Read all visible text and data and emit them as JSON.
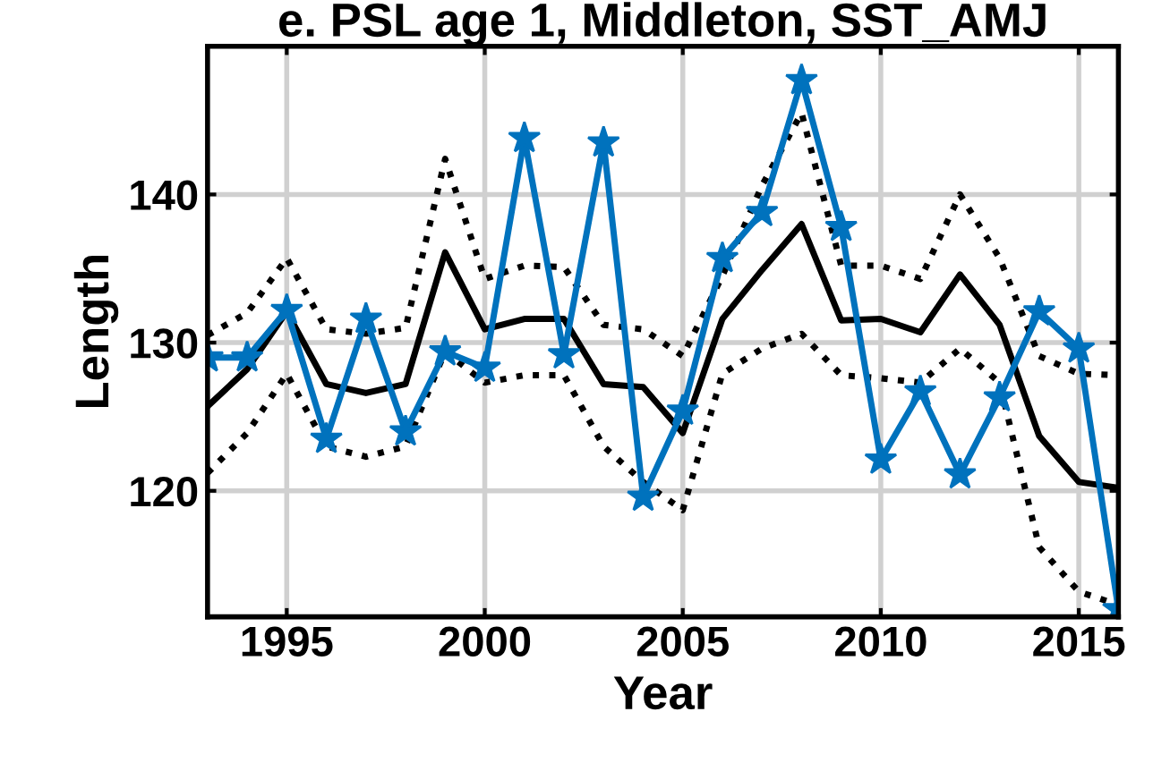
{
  "chart_data": {
    "type": "line",
    "title": "e. PSL age 1, Middleton, SST_AMJ",
    "xlabel": "Year",
    "ylabel": "Length",
    "x": [
      1993,
      1994,
      1995,
      1996,
      1997,
      1998,
      1999,
      2000,
      2001,
      2002,
      2003,
      2004,
      2005,
      2006,
      2007,
      2008,
      2009,
      2010,
      2011,
      2012,
      2013,
      2014,
      2015,
      2016
    ],
    "series": [
      {
        "color": "#000000",
        "line_style": "dotted",
        "marker": "none",
        "values": [
          130.5,
          132,
          135.7,
          130.9,
          130.6,
          131,
          142.4,
          134.3,
          135.2,
          135.1,
          131.2,
          130.9,
          129.1,
          134.5,
          140.6,
          145.5,
          135.2,
          135.2,
          134.3,
          140,
          135.7,
          129.1,
          127.9,
          127.8
        ]
      },
      {
        "color": "#000000",
        "line_style": "dotted",
        "marker": "none",
        "values": [
          121.2,
          123.9,
          127.9,
          123,
          122.3,
          123,
          129.4,
          127.3,
          127.8,
          127.8,
          123,
          120.6,
          118.7,
          127.9,
          129.6,
          130.6,
          127.8,
          127.6,
          127.3,
          129.6,
          127.3,
          116.2,
          113.2,
          112.3
        ]
      },
      {
        "color": "#000000",
        "line_style": "solid",
        "marker": "none",
        "values": [
          125.7,
          128.2,
          132.1,
          127.2,
          126.6,
          127.2,
          136.1,
          130.9,
          131.6,
          131.6,
          127.2,
          127,
          123.9,
          131.6,
          134.9,
          138,
          131.5,
          131.6,
          130.7,
          134.6,
          131.2,
          123.7,
          120.6,
          120.2
        ]
      },
      {
        "color": "#0072bd",
        "line_style": "solid",
        "marker": "star",
        "values": [
          129,
          129,
          132.2,
          123.5,
          131.6,
          124,
          129.4,
          128.3,
          143.8,
          129.2,
          143.5,
          119.6,
          125.4,
          135.7,
          138.8,
          147.7,
          137.8,
          122.1,
          126.7,
          121.1,
          126.3,
          132.1,
          129.6,
          112
        ]
      }
    ],
    "xlim": [
      1993,
      2016
    ],
    "ylim": [
      111.5,
      150
    ],
    "xticks": [
      1995,
      2000,
      2005,
      2010,
      2015
    ],
    "yticks": [
      120,
      130,
      140
    ],
    "grid": true
  }
}
